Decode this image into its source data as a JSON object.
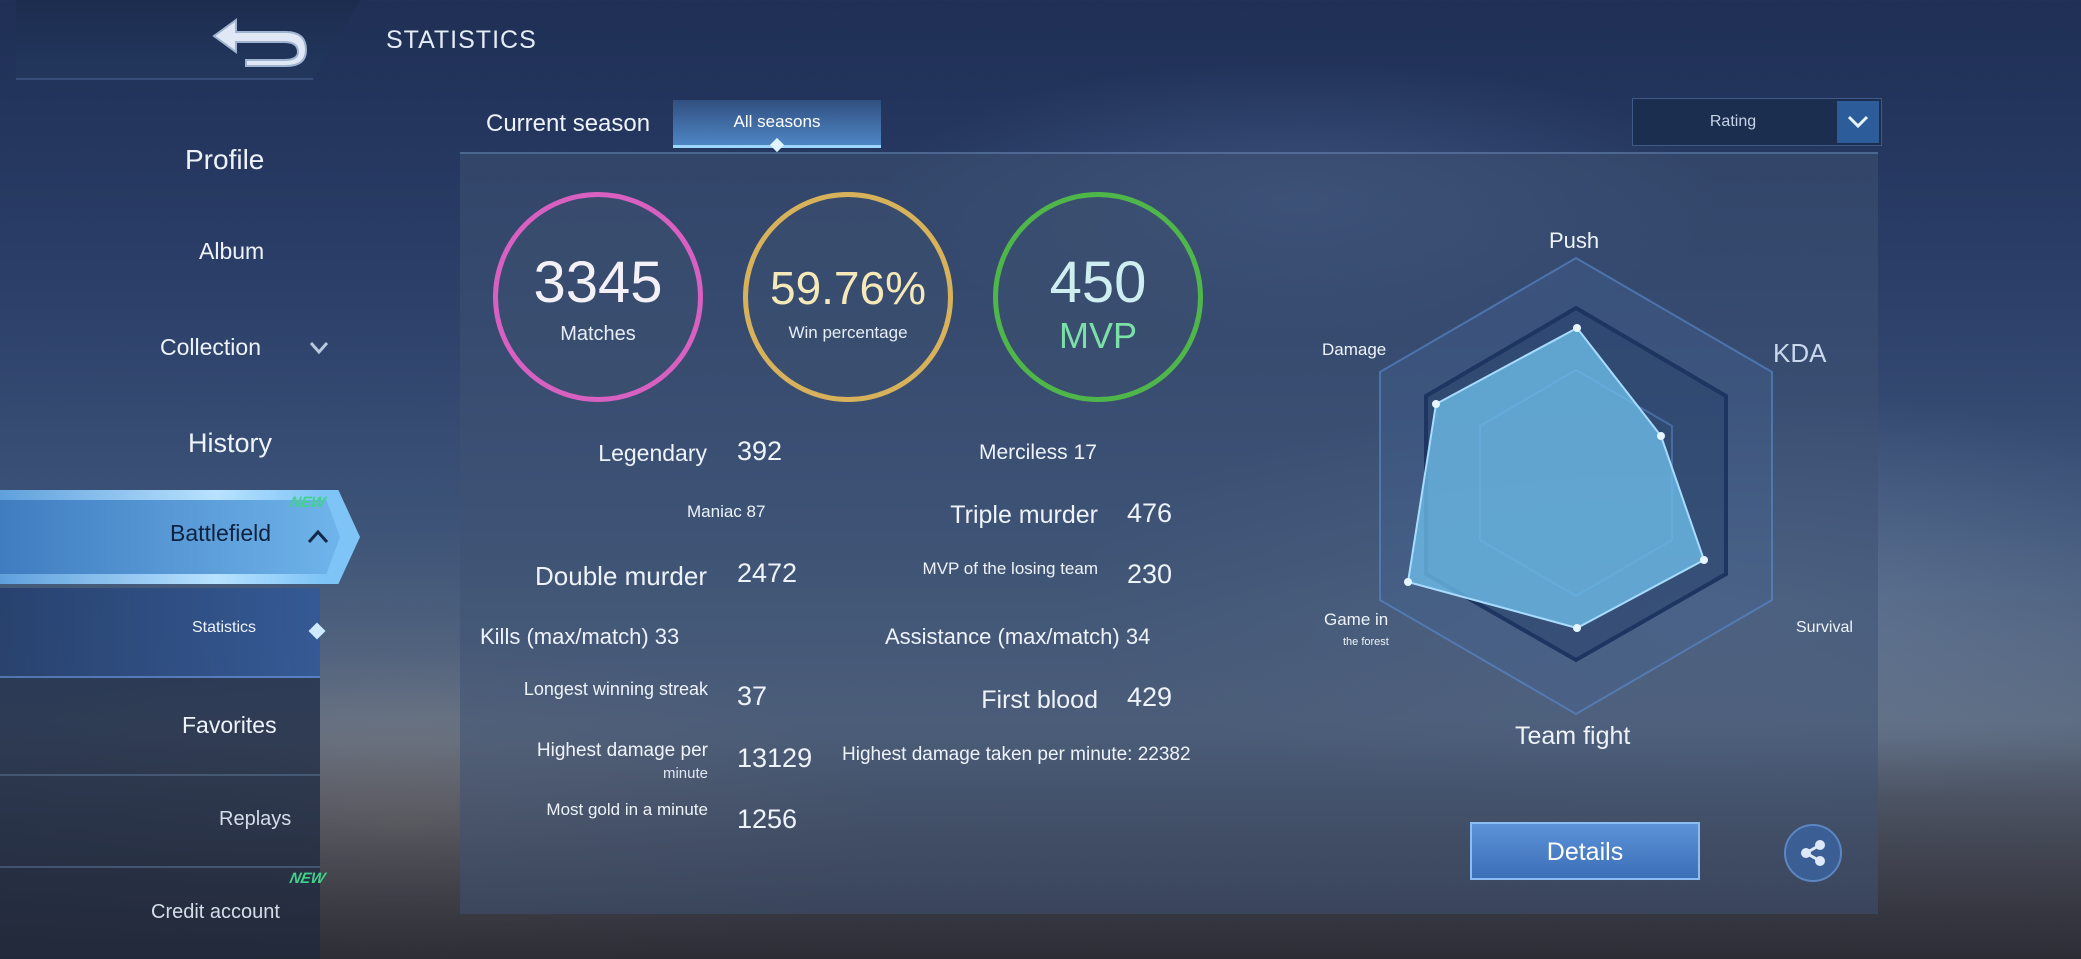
{
  "header": {
    "title": "STATISTICS",
    "back_icon": "back-arrow-icon"
  },
  "sidebar": {
    "items": [
      {
        "label": "Profile"
      },
      {
        "label": "Album"
      },
      {
        "label": "Collection"
      },
      {
        "label": "History"
      },
      {
        "label": "Battlefield",
        "badge": "NEW"
      },
      {
        "label": "Statistics"
      },
      {
        "label": "Favorites"
      },
      {
        "label": "Replays"
      },
      {
        "label": "Credit account",
        "badge": "NEW"
      }
    ]
  },
  "tabs": {
    "current": "Current season",
    "all": "All seasons",
    "rating": "Rating"
  },
  "summary": {
    "matches": {
      "value": "3345",
      "label": "Matches",
      "color": "#d860c0"
    },
    "win": {
      "value": "59.76%",
      "label": "Win percentage",
      "color": "#d8b25a"
    },
    "mvp": {
      "value": "450",
      "label": "MVP",
      "color": "#4fb64a"
    }
  },
  "stats": {
    "legendary_label": "Legendary",
    "legendary_value": "392",
    "merciless": "Merciless 17",
    "maniac": "Maniac 87",
    "triple_label": "Triple murder",
    "triple_value": "476",
    "double_label": "Double murder",
    "double_value": "2472",
    "mvp_losing_label": "MVP of the losing team",
    "mvp_losing_value": "230",
    "kills": "Kills (max/match) 33",
    "assistance": "Assistance (max/match) 34",
    "streak_label": "Longest winning streak",
    "streak_value": "37",
    "firstblood_label": "First blood",
    "firstblood_value": "429",
    "hdpm_label": "Highest damage per",
    "hdpm_label2": "minute",
    "hdpm_value": "13129",
    "hdtpm": "Highest damage taken per minute: 22382",
    "gold_label": "Most gold in a minute",
    "gold_value": "1256"
  },
  "radar": {
    "labels": {
      "push": "Push",
      "kda": "KDA",
      "survival": "Survival",
      "team_fight": "Team fight",
      "game_in": "Game in",
      "the_forest": "the forest",
      "damage": "Damage"
    }
  },
  "actions": {
    "details": "Details",
    "share_icon": "share-icon"
  }
}
